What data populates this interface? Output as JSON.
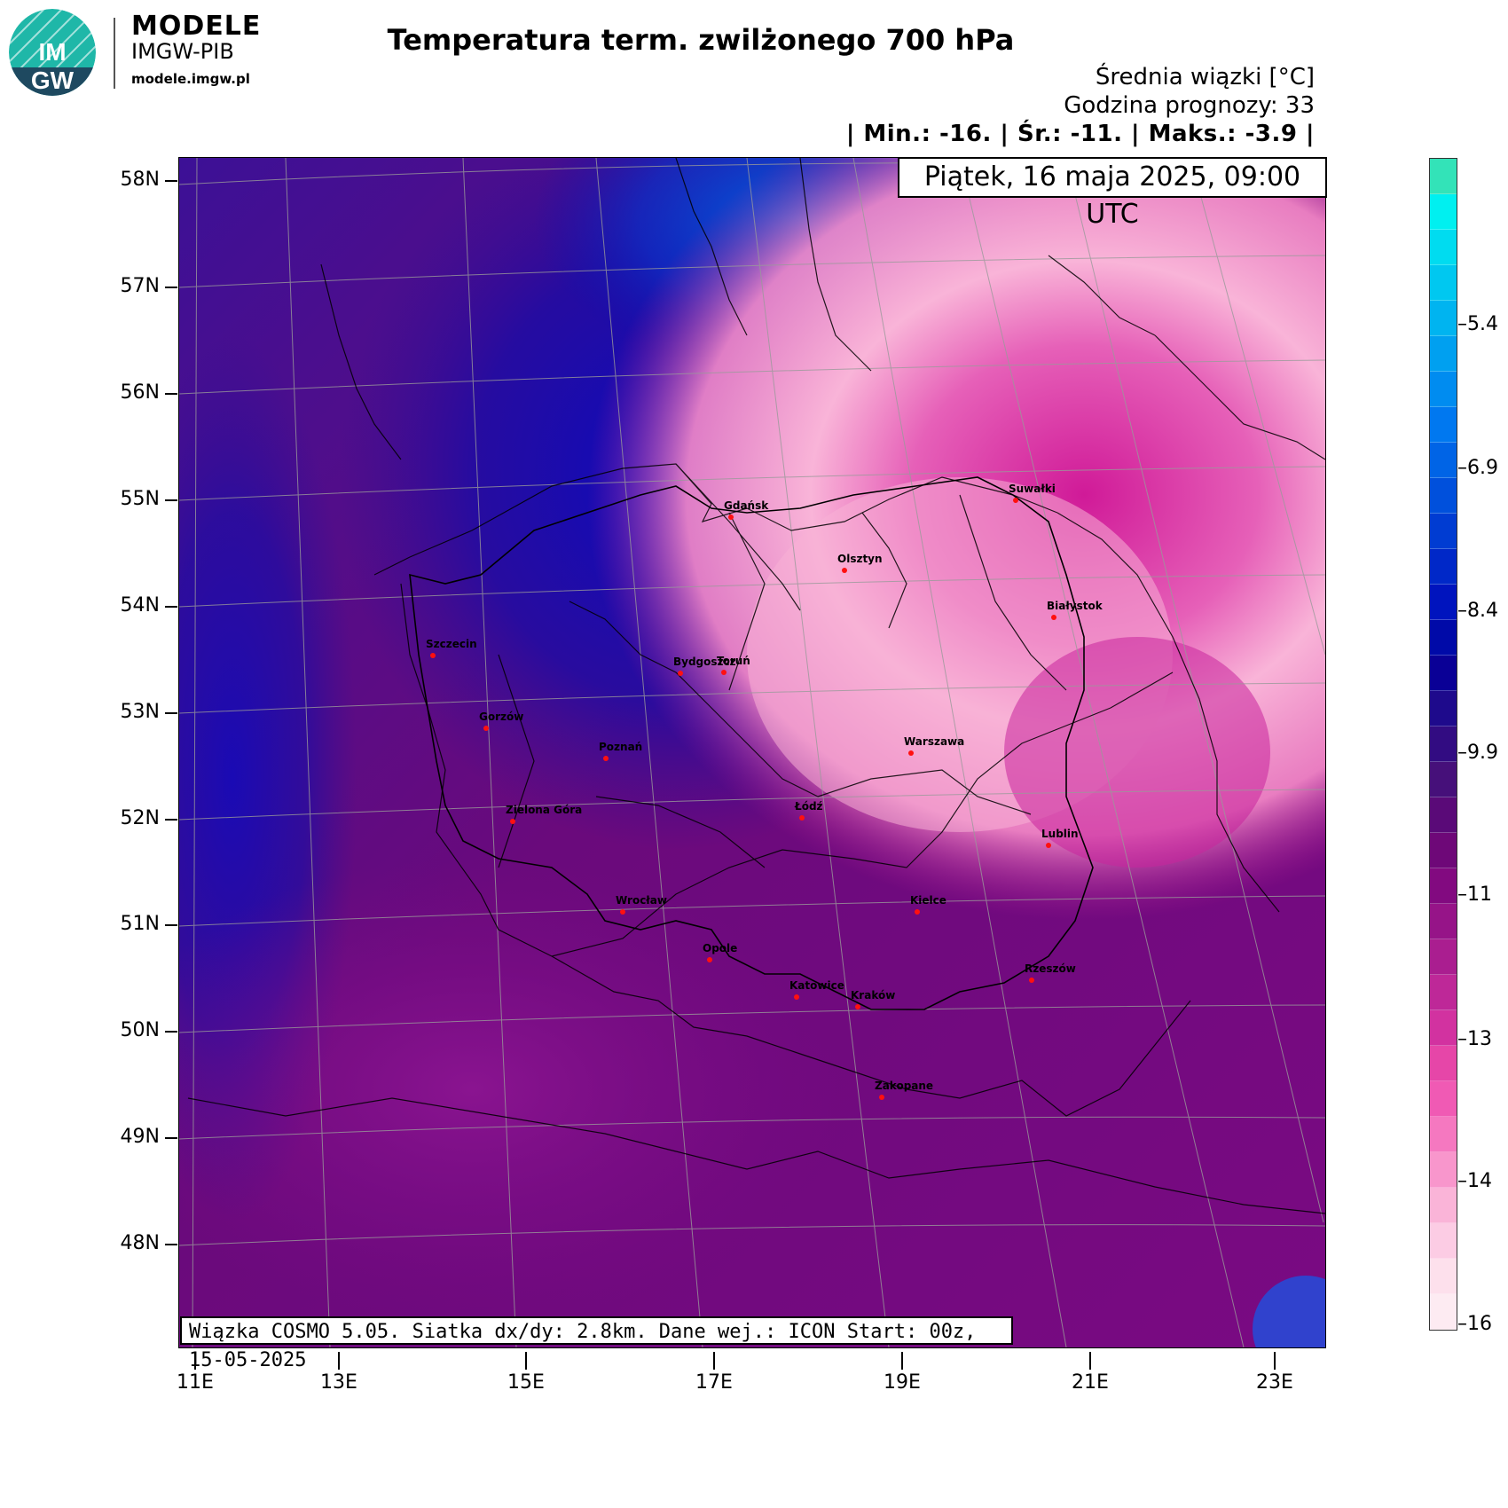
{
  "brand": {
    "title": "MODELE",
    "subtitle": "IMGW-PIB",
    "url": "modele.imgw.pl",
    "logo_top": "IM",
    "logo_bottom": "GW"
  },
  "title": "Temperatura term. zwilżonego 700 hPa",
  "header": {
    "units": "Średnia wiązki [°C]",
    "forecast_hour": "Godzina prognozy: 33",
    "stats": "| Min.:     -16. | Śr.:      -11. | Maks.:     -3.9 |"
  },
  "date": "Piątek, 16 maja 2025, 09:00 UTC",
  "footer": "Wiązka COSMO 5.05. Siatka dx/dy: 2.8km. Dane wej.: ICON Start: 00z, 15-05-2025",
  "lat_labels": [
    "58N",
    "57N",
    "56N",
    "55N",
    "54N",
    "53N",
    "52N",
    "51N",
    "50N",
    "49N",
    "48N"
  ],
  "lon_labels": [
    "11E",
    "13E",
    "15E",
    "17E",
    "19E",
    "21E",
    "23E"
  ],
  "colorbar": {
    "labels": [
      "-5.4",
      "-6.9",
      "-8.4",
      "-9.9",
      "-11",
      "-13",
      "-14",
      "-16"
    ],
    "colors": [
      "#33e3b8",
      "#00f0f0",
      "#00dcf0",
      "#00c8f0",
      "#00b4f0",
      "#00a0f0",
      "#008cf0",
      "#0078f0",
      "#0064e6",
      "#0050dc",
      "#003cd2",
      "#0028c8",
      "#0014be",
      "#000aa8",
      "#0a0096",
      "#1e0a8c",
      "#320c82",
      "#46107a",
      "#5a0a78",
      "#6e0878",
      "#820a80",
      "#961488",
      "#aa1e90",
      "#be2898",
      "#d232a0",
      "#e646a8",
      "#f05ab4",
      "#f578c0",
      "#f896cc",
      "#fab4d8",
      "#fcccE4",
      "#fde0ec",
      "#fdebf2"
    ]
  },
  "cities": [
    {
      "name": "Gdańsk"
    },
    {
      "name": "Suwałki"
    },
    {
      "name": "Olsztyn"
    },
    {
      "name": "Białystok"
    },
    {
      "name": "Szczecin"
    },
    {
      "name": "Bydgoszcz"
    },
    {
      "name": "Toruń"
    },
    {
      "name": "Gorzów"
    },
    {
      "name": "Poznań"
    },
    {
      "name": "Warszawa"
    },
    {
      "name": "Zielona Góra"
    },
    {
      "name": "Łódź"
    },
    {
      "name": "Lublin"
    },
    {
      "name": "Wrocław"
    },
    {
      "name": "Kielce"
    },
    {
      "name": "Opole"
    },
    {
      "name": "Rzeszów"
    },
    {
      "name": "Katowice"
    },
    {
      "name": "Kraków"
    },
    {
      "name": "Zakopane"
    }
  ]
}
